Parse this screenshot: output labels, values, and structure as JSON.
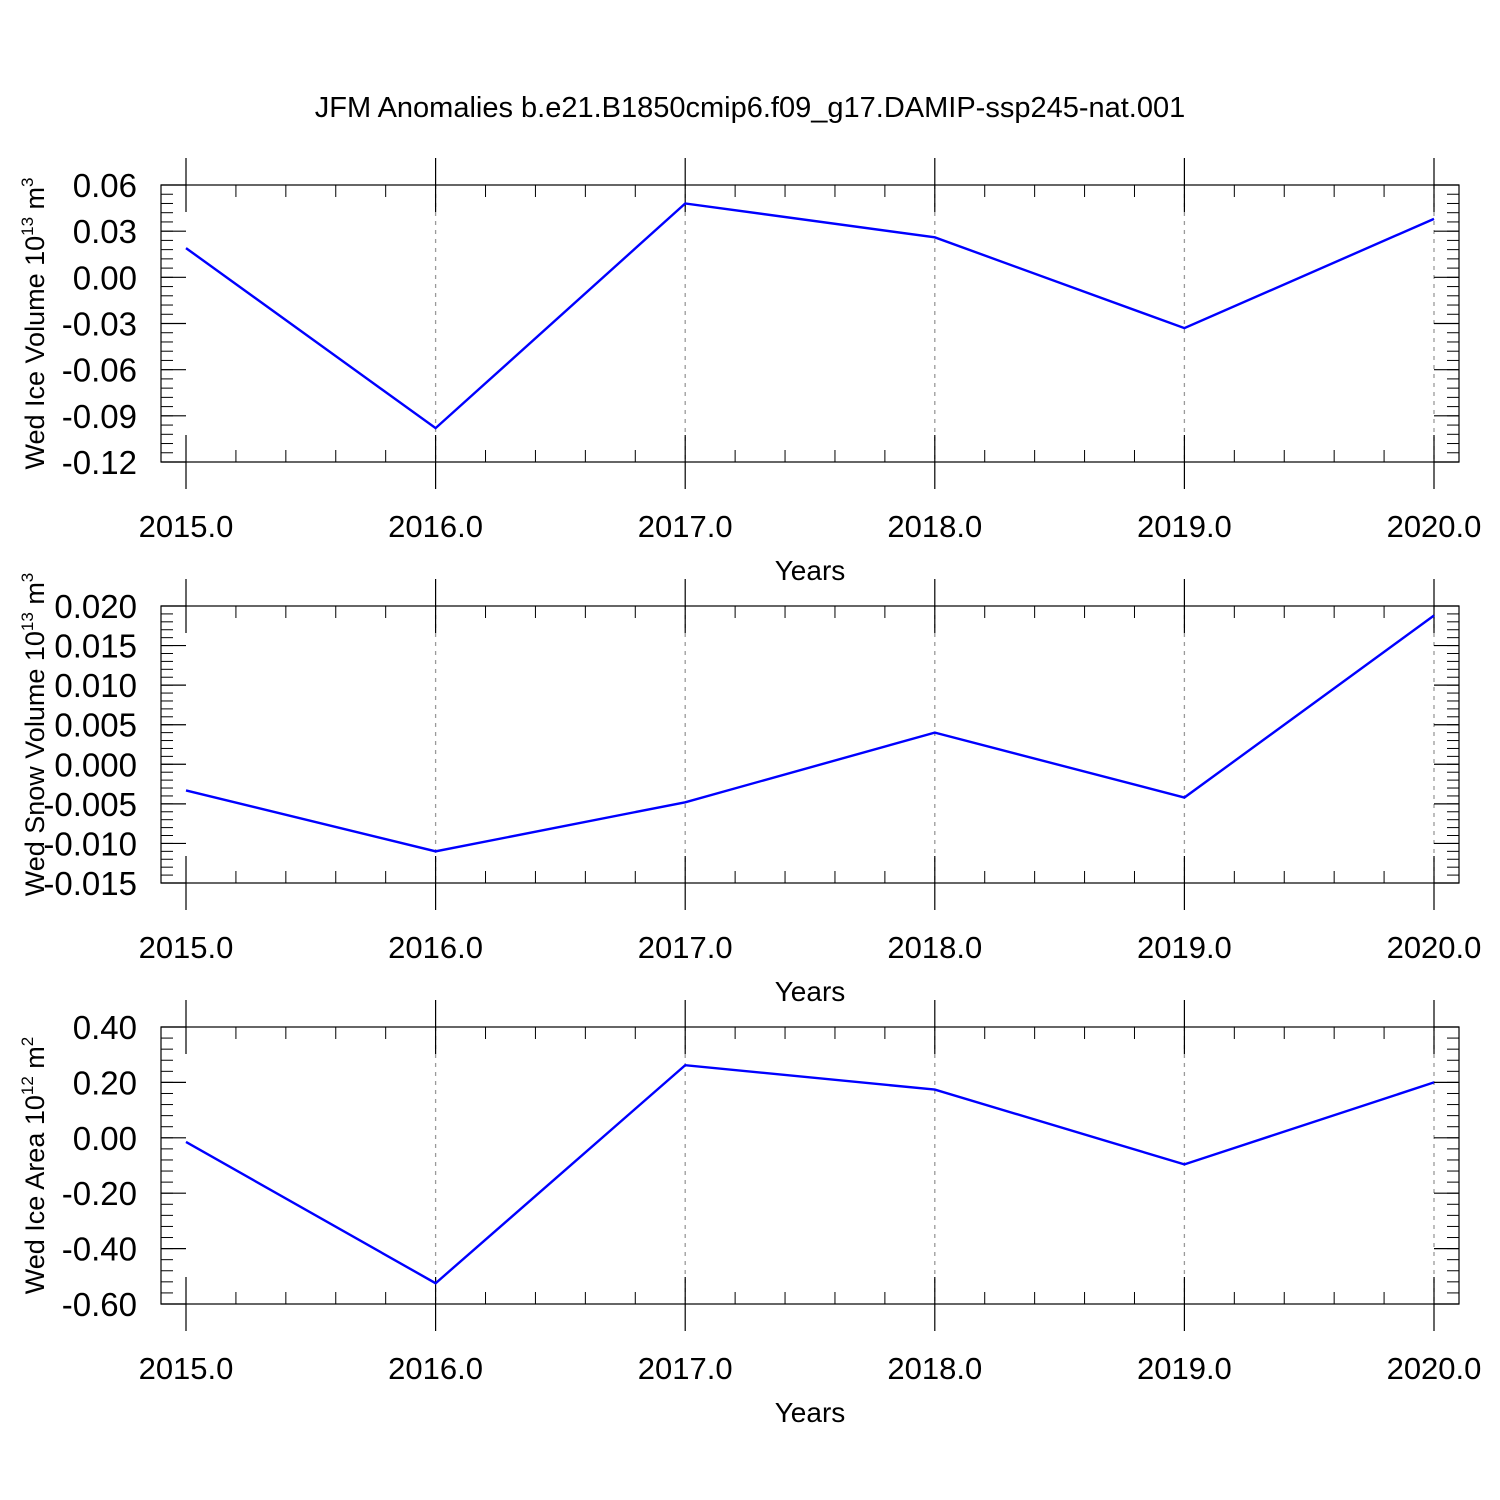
{
  "title": "JFM Anomalies b.e21.B1850cmip6.f09_g17.DAMIP-ssp245-nat.001",
  "colors": {
    "series": "#0000ff",
    "axis": "#000000",
    "grid": "#9a9a9a"
  },
  "chart_data": [
    {
      "type": "line",
      "x": [
        2015.0,
        2016.0,
        2017.0,
        2018.0,
        2019.0,
        2020.0
      ],
      "xlim": [
        2015.0,
        2020.1
      ],
      "xticks": [
        "2015.0",
        "2016.0",
        "2017.0",
        "2018.0",
        "2019.0",
        "2020.0"
      ],
      "xlabel": "Years",
      "ylabel_main": "Wed Ice Volume 10",
      "ylabel_exp": "13",
      "ylabel_unit": " m",
      "ylabel_unit_exp": "3",
      "ylim": [
        -0.12,
        0.06
      ],
      "yticks": [
        "0.06",
        "0.03",
        "0.00",
        "-0.03",
        "-0.06",
        "-0.09",
        "-0.12"
      ],
      "ytick_values": [
        0.06,
        0.03,
        0.0,
        -0.03,
        -0.06,
        -0.09,
        -0.12
      ],
      "y_minor_step": 0.006,
      "grid": "x dashed",
      "series": [
        {
          "values": [
            0.019,
            -0.098,
            0.048,
            0.026,
            -0.033,
            0.038
          ]
        }
      ]
    },
    {
      "type": "line",
      "x": [
        2015.0,
        2016.0,
        2017.0,
        2018.0,
        2019.0,
        2020.0
      ],
      "xlim": [
        2015.0,
        2020.1
      ],
      "xticks": [
        "2015.0",
        "2016.0",
        "2017.0",
        "2018.0",
        "2019.0",
        "2020.0"
      ],
      "xlabel": "Years",
      "ylabel_main": "Wed Snow Volume 10",
      "ylabel_exp": "13",
      "ylabel_unit": " m",
      "ylabel_unit_exp": "3",
      "ylim": [
        -0.015,
        0.02
      ],
      "yticks": [
        "0.020",
        "0.015",
        "0.010",
        "0.005",
        "0.000",
        "-0.005",
        "-0.010",
        "-0.015"
      ],
      "ytick_values": [
        0.02,
        0.015,
        0.01,
        0.005,
        0.0,
        -0.005,
        -0.01,
        -0.015
      ],
      "y_minor_step": 0.001,
      "grid": "x dashed",
      "series": [
        {
          "values": [
            -0.0033,
            -0.011,
            -0.0048,
            0.004,
            -0.0042,
            0.0188
          ]
        }
      ]
    },
    {
      "type": "line",
      "x": [
        2015.0,
        2016.0,
        2017.0,
        2018.0,
        2019.0,
        2020.0
      ],
      "xlim": [
        2015.0,
        2020.1
      ],
      "xticks": [
        "2015.0",
        "2016.0",
        "2017.0",
        "2018.0",
        "2019.0",
        "2020.0"
      ],
      "xlabel": "Years",
      "ylabel_main": "Wed Ice Area 10",
      "ylabel_exp": "12",
      "ylabel_unit": " m",
      "ylabel_unit_exp": "2",
      "ylim": [
        -0.6,
        0.4
      ],
      "yticks": [
        "0.40",
        "0.20",
        "0.00",
        "-0.20",
        "-0.40",
        "-0.60"
      ],
      "ytick_values": [
        0.4,
        0.2,
        0.0,
        -0.2,
        -0.4,
        -0.6
      ],
      "y_minor_step": 0.04,
      "grid": "x dashed",
      "series": [
        {
          "values": [
            -0.015,
            -0.525,
            0.262,
            0.174,
            -0.096,
            0.2
          ]
        }
      ]
    }
  ]
}
